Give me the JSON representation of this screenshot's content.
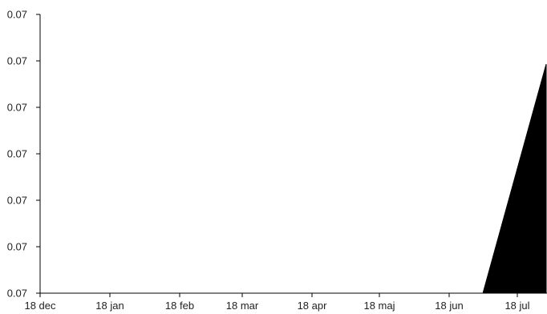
{
  "chart_data": {
    "type": "area",
    "title": "",
    "xlabel": "",
    "ylabel": "",
    "y_tick_labels": [
      "0.07",
      "0.07",
      "0.07",
      "0.07",
      "0.07",
      "0.07",
      "0.07"
    ],
    "x_tick_labels": [
      "18 dec",
      "18 jan",
      "18 feb",
      "18 mar",
      "18 apr",
      "18 maj",
      "18 jun",
      "18 jul"
    ],
    "grid": false,
    "legend": "none",
    "fill_color": "#000000",
    "series": [
      {
        "values": [
          0.07,
          0.07,
          0.07,
          0.07,
          0.07,
          0.07,
          0.07,
          0.07,
          0.0701
        ]
      }
    ]
  }
}
